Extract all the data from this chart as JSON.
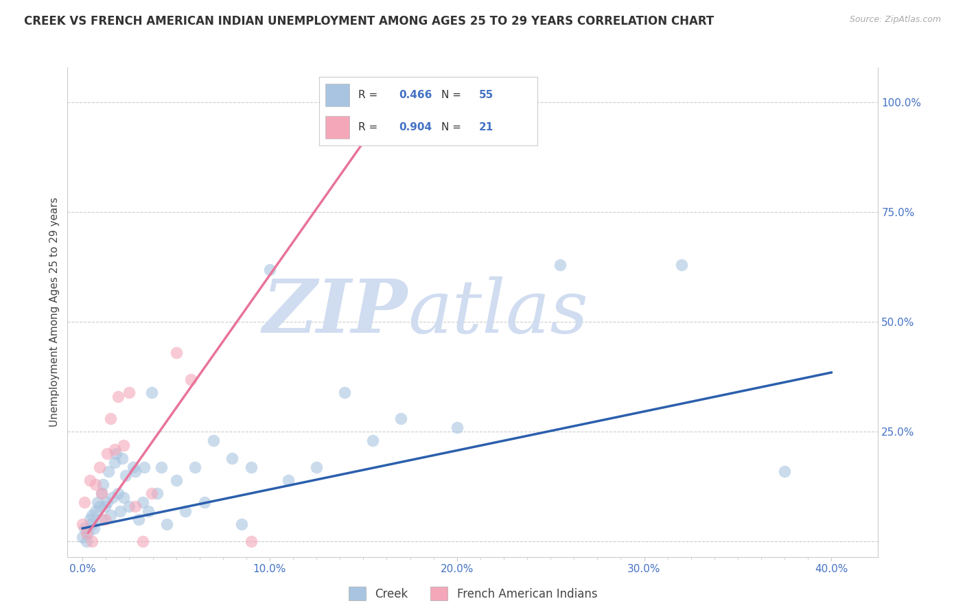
{
  "title": "CREEK VS FRENCH AMERICAN INDIAN UNEMPLOYMENT AMONG AGES 25 TO 29 YEARS CORRELATION CHART",
  "source": "Source: ZipAtlas.com",
  "xlabel_ticks": [
    "0.0%",
    "",
    "",
    "",
    "",
    "",
    "",
    "",
    "10.0%",
    "",
    "",
    "",
    "",
    "",
    "",
    "",
    "20.0%",
    "",
    "",
    "",
    "",
    "",
    "",
    "",
    "30.0%",
    "",
    "",
    "",
    "",
    "",
    "",
    "",
    "40.0%"
  ],
  "xlabel_tick_vals": [
    0.0,
    0.0125,
    0.025,
    0.0375,
    0.05,
    0.0625,
    0.075,
    0.0875,
    0.1,
    0.1125,
    0.125,
    0.1375,
    0.15,
    0.1625,
    0.175,
    0.1875,
    0.2,
    0.2125,
    0.225,
    0.2375,
    0.25,
    0.2625,
    0.275,
    0.2875,
    0.3,
    0.3125,
    0.325,
    0.3375,
    0.35,
    0.3625,
    0.375,
    0.3875,
    0.4
  ],
  "ylabel_right_ticks": [
    "",
    "25.0%",
    "50.0%",
    "75.0%",
    "100.0%"
  ],
  "ylabel_right_tick_vals": [
    0.0,
    0.25,
    0.5,
    0.75,
    1.0
  ],
  "xlim": [
    -0.008,
    0.425
  ],
  "ylim": [
    -0.035,
    1.08
  ],
  "creek_color": "#a8c4e0",
  "french_color": "#f4a7b9",
  "creek_line_color": "#2b5fac",
  "french_line_color": "#e8749a",
  "creek_R": 0.466,
  "creek_N": 55,
  "french_R": 0.904,
  "french_N": 21,
  "watermark_zip": "ZIP",
  "watermark_atlas": "atlas",
  "watermark_color": "#d0dcf0",
  "legend_label_creek": "Creek",
  "legend_label_french": "French American Indians",
  "ylabel": "Unemployment Among Ages 25 to 29 years",
  "creek_scatter_x": [
    0.0,
    0.001,
    0.002,
    0.003,
    0.004,
    0.005,
    0.005,
    0.006,
    0.007,
    0.008,
    0.009,
    0.01,
    0.01,
    0.011,
    0.012,
    0.013,
    0.014,
    0.015,
    0.016,
    0.017,
    0.018,
    0.019,
    0.02,
    0.021,
    0.022,
    0.023,
    0.025,
    0.027,
    0.028,
    0.03,
    0.032,
    0.033,
    0.035,
    0.037,
    0.04,
    0.042,
    0.045,
    0.05,
    0.055,
    0.06,
    0.065,
    0.07,
    0.08,
    0.085,
    0.09,
    0.1,
    0.11,
    0.125,
    0.14,
    0.155,
    0.17,
    0.2,
    0.255,
    0.32,
    0.375
  ],
  "creek_scatter_y": [
    0.01,
    0.03,
    0.0,
    0.02,
    0.05,
    0.06,
    0.04,
    0.03,
    0.07,
    0.09,
    0.08,
    0.05,
    0.11,
    0.13,
    0.08,
    0.09,
    0.16,
    0.06,
    0.1,
    0.18,
    0.2,
    0.11,
    0.07,
    0.19,
    0.1,
    0.15,
    0.08,
    0.17,
    0.16,
    0.05,
    0.09,
    0.17,
    0.07,
    0.34,
    0.11,
    0.17,
    0.04,
    0.14,
    0.07,
    0.17,
    0.09,
    0.23,
    0.19,
    0.04,
    0.17,
    0.62,
    0.14,
    0.17,
    0.34,
    0.23,
    0.28,
    0.26,
    0.63,
    0.63,
    0.16
  ],
  "french_scatter_x": [
    0.0,
    0.001,
    0.002,
    0.004,
    0.005,
    0.007,
    0.009,
    0.01,
    0.012,
    0.013,
    0.015,
    0.017,
    0.019,
    0.022,
    0.025,
    0.028,
    0.032,
    0.037,
    0.05,
    0.058,
    0.09
  ],
  "french_scatter_y": [
    0.04,
    0.09,
    0.02,
    0.14,
    0.0,
    0.13,
    0.17,
    0.11,
    0.05,
    0.2,
    0.28,
    0.21,
    0.33,
    0.22,
    0.34,
    0.08,
    0.0,
    0.11,
    0.43,
    0.37,
    0.0
  ],
  "creek_line_x": [
    0.0,
    0.4
  ],
  "creek_line_y": [
    0.03,
    0.385
  ],
  "french_line_x": [
    0.003,
    0.165
  ],
  "french_line_y": [
    0.02,
    1.0
  ]
}
